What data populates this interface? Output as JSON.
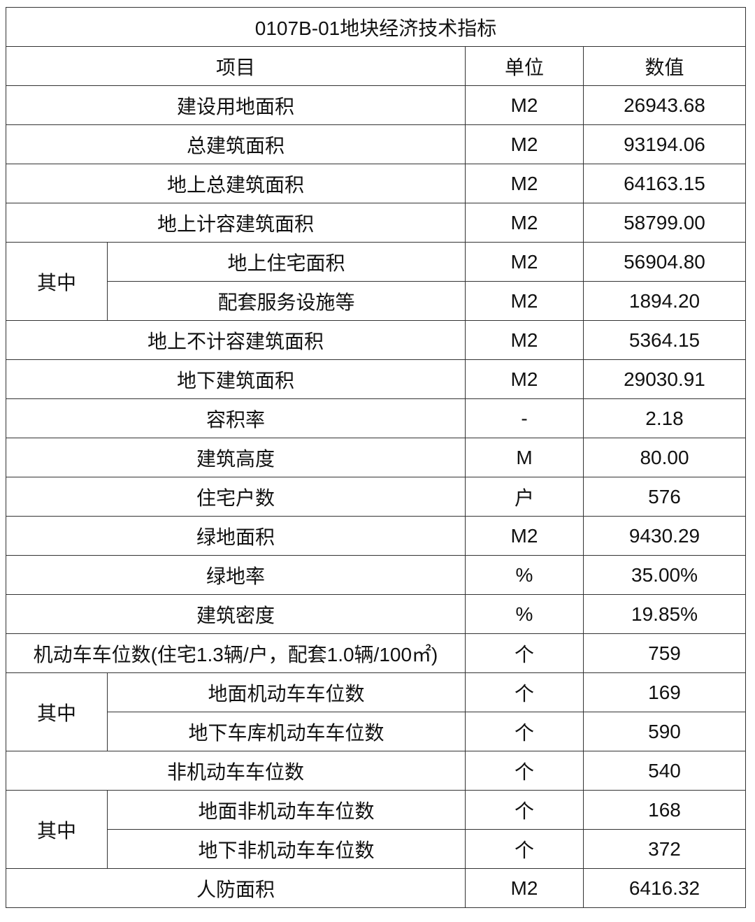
{
  "title": "0107B-01地块经济技术指标",
  "headers": {
    "item": "项目",
    "unit": "单位",
    "value": "数值"
  },
  "rows": [
    {
      "item": "建设用地面积",
      "unit": "M2",
      "value": "26943.68"
    },
    {
      "item": "总建筑面积",
      "unit": "M2",
      "value": "93194.06"
    },
    {
      "item": "地上总建筑面积",
      "unit": "M2",
      "value": "64163.15"
    },
    {
      "item": "地上计容建筑面积",
      "unit": "M2",
      "value": "58799.00"
    },
    {
      "group": "其中",
      "items": [
        {
          "item": "地上住宅面积",
          "unit": "M2",
          "value": "56904.80"
        },
        {
          "item": "配套服务设施等",
          "unit": "M2",
          "value": "1894.20"
        }
      ]
    },
    {
      "item": "地上不计容建筑面积",
      "unit": "M2",
      "value": "5364.15"
    },
    {
      "item": "地下建筑面积",
      "unit": "M2",
      "value": "29030.91"
    },
    {
      "item": "容积率",
      "unit": "-",
      "value": "2.18"
    },
    {
      "item": "建筑高度",
      "unit": "M",
      "value": "80.00"
    },
    {
      "item": "住宅户数",
      "unit": "户",
      "value": "576"
    },
    {
      "item": "绿地面积",
      "unit": "M2",
      "value": "9430.29"
    },
    {
      "item": "绿地率",
      "unit": "%",
      "value": "35.00%"
    },
    {
      "item": "建筑密度",
      "unit": "%",
      "value": "19.85%"
    },
    {
      "item": "机动车车位数(住宅1.3辆/户，配套1.0辆/100㎡)",
      "unit": "个",
      "value": "759"
    },
    {
      "group": "其中",
      "items": [
        {
          "item": "地面机动车车位数",
          "unit": "个",
          "value": "169"
        },
        {
          "item": "地下车库机动车车位数",
          "unit": "个",
          "value": "590"
        }
      ]
    },
    {
      "item": "非机动车车位数",
      "unit": "个",
      "value": "540"
    },
    {
      "group": "其中",
      "items": [
        {
          "item": "地面非机动车车位数",
          "unit": "个",
          "value": "168"
        },
        {
          "item": "地下非机动车车位数",
          "unit": "个",
          "value": "372"
        }
      ]
    },
    {
      "item": "人防面积",
      "unit": "M2",
      "value": "6416.32"
    }
  ]
}
